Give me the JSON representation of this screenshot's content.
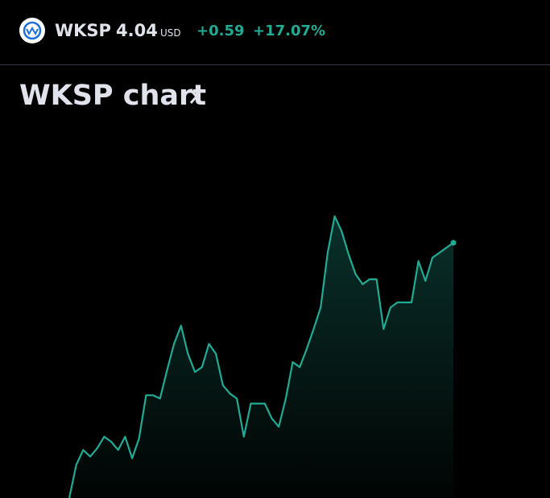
{
  "header": {
    "symbol": "WKSP",
    "price": "4.04",
    "currency": "USD",
    "change": "+0.59",
    "change_percent": "+17.07%"
  },
  "title": "WKSP chart",
  "chart_data": {
    "type": "line",
    "color": "#22ab94",
    "ylim": [
      2.5,
      4.5
    ],
    "values": [
      2.5,
      2.7,
      2.79,
      2.75,
      2.8,
      2.87,
      2.84,
      2.79,
      2.87,
      2.74,
      2.86,
      3.12,
      3.12,
      3.1,
      3.27,
      3.43,
      3.54,
      3.37,
      3.26,
      3.29,
      3.43,
      3.37,
      3.18,
      3.13,
      3.1,
      2.87,
      3.07,
      3.07,
      3.07,
      2.98,
      2.93,
      3.1,
      3.32,
      3.29,
      3.4,
      3.52,
      3.65,
      3.98,
      4.2,
      4.11,
      3.97,
      3.85,
      3.79,
      3.82,
      3.82,
      3.52,
      3.65,
      3.68,
      3.68,
      3.68,
      3.93,
      3.81,
      3.95,
      3.98,
      4.01,
      4.04
    ]
  }
}
